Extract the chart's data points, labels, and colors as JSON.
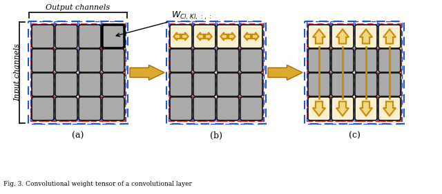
{
  "background_color": "#ffffff",
  "blue_color": "#2255cc",
  "red_color": "#cc2222",
  "gold_color": "#cc8800",
  "gold_fill": "#e8b840",
  "gray_fill": "#aaaaaa",
  "dark_border": "#111111",
  "label_a": "(a)",
  "label_b": "(b)",
  "label_c": "(c)",
  "output_channels_label": "Output channels",
  "input_channels_label": "Input channels",
  "caption": "Fig. 3. Convolutional weight tensor of a convolutional layer"
}
